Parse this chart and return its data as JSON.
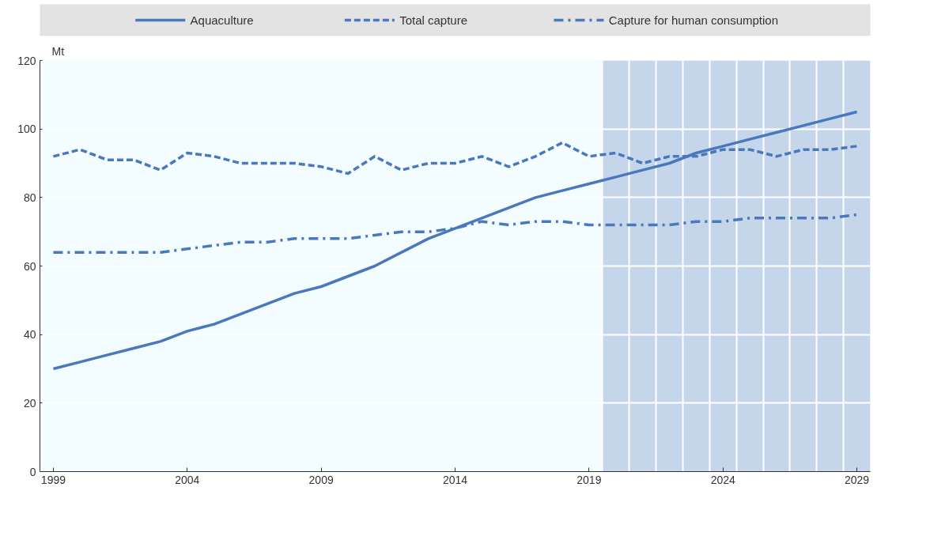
{
  "chart_data": {
    "type": "line",
    "ylabel": "Mt",
    "x": [
      1999,
      2000,
      2001,
      2002,
      2003,
      2004,
      2005,
      2006,
      2007,
      2008,
      2009,
      2010,
      2011,
      2012,
      2013,
      2014,
      2015,
      2016,
      2017,
      2018,
      2019,
      2020,
      2021,
      2022,
      2023,
      2024,
      2025,
      2026,
      2027,
      2028,
      2029
    ],
    "series": [
      {
        "name": "Aquaculture",
        "color": "#4a78bd",
        "line_style": "solid",
        "values": [
          30,
          32,
          34,
          36,
          38,
          41,
          43,
          46,
          49,
          52,
          54,
          57,
          60,
          64,
          68,
          71,
          74,
          77,
          80,
          82,
          84,
          86,
          88,
          90,
          93,
          95,
          97,
          99,
          101,
          103,
          105
        ]
      },
      {
        "name": "Total capture",
        "color": "#4a78bd",
        "line_style": "dashed",
        "values": [
          92,
          94,
          91,
          91,
          88,
          93,
          92,
          90,
          90,
          90,
          89,
          87,
          92,
          88,
          90,
          90,
          92,
          89,
          92,
          96,
          92,
          93,
          90,
          92,
          92,
          94,
          94,
          92,
          94,
          94,
          95
        ]
      },
      {
        "name": "Capture for human consumption",
        "color": "#4a78bd",
        "line_style": "dashdot",
        "values": [
          64,
          64,
          64,
          64,
          64,
          65,
          66,
          67,
          67,
          68,
          68,
          68,
          69,
          70,
          70,
          71,
          73,
          72,
          73,
          73,
          72,
          72,
          72,
          72,
          73,
          73,
          74,
          74,
          74,
          74,
          75
        ]
      }
    ],
    "xlim": [
      1998.5,
      2029.5
    ],
    "xticks": [
      1999,
      2004,
      2009,
      2014,
      2019,
      2024,
      2029
    ],
    "ylim": [
      0,
      120
    ],
    "yticks": [
      0,
      20,
      40,
      60,
      80,
      100,
      120
    ],
    "bands": [
      {
        "axis": "x",
        "from": 2019.5,
        "to": 2029.5,
        "color": "#c6d6ea"
      }
    ],
    "grid": true,
    "legend": "top",
    "marker": "none"
  }
}
